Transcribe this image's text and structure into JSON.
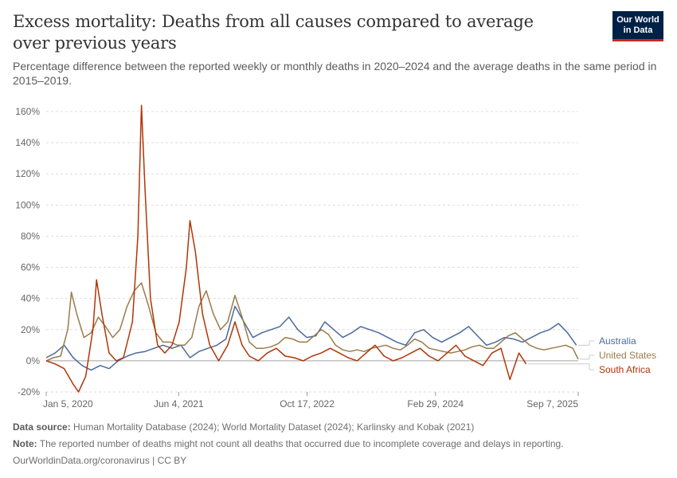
{
  "header": {
    "title": "Excess mortality: Deaths from all causes compared to average over previous years",
    "subtitle": "Percentage difference between the reported weekly or monthly deaths in 2020–2024 and the average deaths in the same period in 2015–2019.",
    "logo_line1": "Our World",
    "logo_line2": "in Data"
  },
  "footer": {
    "source_label": "Data source:",
    "source_text": "Human Mortality Database (2024); World Mortality Dataset (2024); Karlinsky and Kobak (2021)",
    "note_label": "Note:",
    "note_text": "The reported number of deaths might not count all deaths that occurred due to incomplete coverage and delays in reporting.",
    "credit": "OurWorldinData.org/coronavirus | CC BY"
  },
  "chart_data": {
    "type": "line",
    "x_axis": {
      "min": "2020-01-05",
      "max": "2025-09-07",
      "ticks": [
        "2020-01-05",
        "2021-06-04",
        "2022-10-17",
        "2024-02-29",
        "2025-09-07"
      ],
      "tick_labels": [
        "Jan 5, 2020",
        "Jun 4, 2021",
        "Oct 17, 2022",
        "Feb 29, 2024",
        "Sep 7, 2025"
      ]
    },
    "y_axis": {
      "min": -20,
      "max": 160,
      "ticks": [
        -20,
        0,
        20,
        40,
        60,
        80,
        100,
        120,
        140,
        160
      ],
      "tick_labels": [
        "-20%",
        "0%",
        "20%",
        "40%",
        "60%",
        "80%",
        "100%",
        "120%",
        "140%",
        "160%"
      ]
    },
    "grid": "horizontal dashed",
    "legend": "right end labels",
    "series": [
      {
        "name": "Australia",
        "color": "#4c6a9c",
        "points": [
          [
            "2020-01-05",
            2
          ],
          [
            "2020-02-09",
            5
          ],
          [
            "2020-03-15",
            10
          ],
          [
            "2020-04-19",
            2
          ],
          [
            "2020-05-24",
            -3
          ],
          [
            "2020-06-28",
            -6
          ],
          [
            "2020-08-02",
            -3
          ],
          [
            "2020-09-06",
            -5
          ],
          [
            "2020-10-11",
            0
          ],
          [
            "2020-11-15",
            3
          ],
          [
            "2020-12-20",
            5
          ],
          [
            "2021-01-24",
            6
          ],
          [
            "2021-02-28",
            8
          ],
          [
            "2021-04-04",
            10
          ],
          [
            "2021-05-09",
            8
          ],
          [
            "2021-06-13",
            10
          ],
          [
            "2021-07-18",
            2
          ],
          [
            "2021-08-22",
            6
          ],
          [
            "2021-09-26",
            8
          ],
          [
            "2021-10-31",
            10
          ],
          [
            "2021-12-05",
            14
          ],
          [
            "2022-01-09",
            35
          ],
          [
            "2022-02-13",
            25
          ],
          [
            "2022-03-20",
            15
          ],
          [
            "2022-04-24",
            18
          ],
          [
            "2022-05-29",
            20
          ],
          [
            "2022-07-03",
            22
          ],
          [
            "2022-08-07",
            28
          ],
          [
            "2022-09-11",
            20
          ],
          [
            "2022-10-16",
            15
          ],
          [
            "2022-11-20",
            16
          ],
          [
            "2022-12-25",
            25
          ],
          [
            "2023-01-29",
            20
          ],
          [
            "2023-03-05",
            15
          ],
          [
            "2023-04-09",
            18
          ],
          [
            "2023-05-14",
            22
          ],
          [
            "2023-06-18",
            20
          ],
          [
            "2023-07-23",
            18
          ],
          [
            "2023-08-27",
            15
          ],
          [
            "2023-10-01",
            12
          ],
          [
            "2023-11-05",
            10
          ],
          [
            "2023-12-10",
            18
          ],
          [
            "2024-01-14",
            20
          ],
          [
            "2024-02-18",
            15
          ],
          [
            "2024-03-24",
            12
          ],
          [
            "2024-04-28",
            15
          ],
          [
            "2024-06-02",
            18
          ],
          [
            "2024-07-07",
            22
          ],
          [
            "2024-08-11",
            16
          ],
          [
            "2024-09-15",
            10
          ],
          [
            "2024-10-20",
            12
          ],
          [
            "2024-11-24",
            15
          ],
          [
            "2024-12-29",
            14
          ],
          [
            "2025-02-02",
            12
          ],
          [
            "2025-03-09",
            15
          ],
          [
            "2025-04-13",
            18
          ],
          [
            "2025-05-18",
            20
          ],
          [
            "2025-06-22",
            24
          ],
          [
            "2025-07-27",
            18
          ],
          [
            "2025-08-31",
            10
          ]
        ]
      },
      {
        "name": "United States",
        "color": "#9a7b4a",
        "points": [
          [
            "2020-01-05",
            0
          ],
          [
            "2020-02-02",
            2
          ],
          [
            "2020-03-01",
            3
          ],
          [
            "2020-03-29",
            20
          ],
          [
            "2020-04-12",
            44
          ],
          [
            "2020-05-03",
            30
          ],
          [
            "2020-05-31",
            15
          ],
          [
            "2020-06-28",
            18
          ],
          [
            "2020-07-26",
            28
          ],
          [
            "2020-08-23",
            22
          ],
          [
            "2020-09-20",
            15
          ],
          [
            "2020-10-18",
            20
          ],
          [
            "2020-11-15",
            35
          ],
          [
            "2020-12-13",
            45
          ],
          [
            "2021-01-10",
            50
          ],
          [
            "2021-02-07",
            35
          ],
          [
            "2021-03-07",
            18
          ],
          [
            "2021-04-04",
            12
          ],
          [
            "2021-05-02",
            12
          ],
          [
            "2021-05-30",
            10
          ],
          [
            "2021-06-27",
            10
          ],
          [
            "2021-07-25",
            15
          ],
          [
            "2021-08-22",
            35
          ],
          [
            "2021-09-19",
            45
          ],
          [
            "2021-10-17",
            30
          ],
          [
            "2021-11-14",
            20
          ],
          [
            "2021-12-12",
            25
          ],
          [
            "2022-01-09",
            42
          ],
          [
            "2022-02-06",
            28
          ],
          [
            "2022-03-06",
            12
          ],
          [
            "2022-04-03",
            8
          ],
          [
            "2022-05-01",
            8
          ],
          [
            "2022-05-29",
            9
          ],
          [
            "2022-06-26",
            11
          ],
          [
            "2022-07-24",
            15
          ],
          [
            "2022-08-21",
            14
          ],
          [
            "2022-09-18",
            12
          ],
          [
            "2022-10-16",
            12
          ],
          [
            "2022-11-13",
            16
          ],
          [
            "2022-12-11",
            20
          ],
          [
            "2023-01-08",
            17
          ],
          [
            "2023-02-05",
            10
          ],
          [
            "2023-03-05",
            7
          ],
          [
            "2023-04-02",
            6
          ],
          [
            "2023-04-30",
            7
          ],
          [
            "2023-05-28",
            6
          ],
          [
            "2023-06-25",
            8
          ],
          [
            "2023-07-23",
            9
          ],
          [
            "2023-08-20",
            10
          ],
          [
            "2023-09-17",
            8
          ],
          [
            "2023-10-15",
            7
          ],
          [
            "2023-11-12",
            10
          ],
          [
            "2023-12-10",
            14
          ],
          [
            "2024-01-07",
            12
          ],
          [
            "2024-02-04",
            8
          ],
          [
            "2024-03-03",
            7
          ],
          [
            "2024-03-31",
            6
          ],
          [
            "2024-04-28",
            5
          ],
          [
            "2024-05-26",
            6
          ],
          [
            "2024-06-23",
            7
          ],
          [
            "2024-07-21",
            9
          ],
          [
            "2024-08-18",
            10
          ],
          [
            "2024-09-15",
            8
          ],
          [
            "2024-10-13",
            8
          ],
          [
            "2024-11-10",
            12
          ],
          [
            "2024-12-08",
            16
          ],
          [
            "2025-01-05",
            18
          ],
          [
            "2025-02-02",
            14
          ],
          [
            "2025-03-02",
            10
          ],
          [
            "2025-03-30",
            8
          ],
          [
            "2025-04-27",
            7
          ],
          [
            "2025-05-25",
            8
          ],
          [
            "2025-06-22",
            9
          ],
          [
            "2025-07-20",
            10
          ],
          [
            "2025-08-17",
            8
          ],
          [
            "2025-09-07",
            1
          ]
        ]
      },
      {
        "name": "South Africa",
        "color": "#b13507",
        "points": [
          [
            "2020-01-05",
            0
          ],
          [
            "2020-02-09",
            -2
          ],
          [
            "2020-03-15",
            -5
          ],
          [
            "2020-04-19",
            -15
          ],
          [
            "2020-05-10",
            -20
          ],
          [
            "2020-06-07",
            -10
          ],
          [
            "2020-07-05",
            20
          ],
          [
            "2020-07-19",
            52
          ],
          [
            "2020-08-09",
            30
          ],
          [
            "2020-09-06",
            5
          ],
          [
            "2020-10-04",
            0
          ],
          [
            "2020-11-01",
            2
          ],
          [
            "2020-12-06",
            25
          ],
          [
            "2020-12-27",
            80
          ],
          [
            "2021-01-10",
            164
          ],
          [
            "2021-01-24",
            110
          ],
          [
            "2021-02-14",
            40
          ],
          [
            "2021-03-14",
            10
          ],
          [
            "2021-04-11",
            5
          ],
          [
            "2021-05-09",
            10
          ],
          [
            "2021-06-06",
            25
          ],
          [
            "2021-07-04",
            60
          ],
          [
            "2021-07-18",
            90
          ],
          [
            "2021-08-08",
            70
          ],
          [
            "2021-09-05",
            30
          ],
          [
            "2021-10-03",
            10
          ],
          [
            "2021-11-07",
            0
          ],
          [
            "2021-12-12",
            10
          ],
          [
            "2022-01-09",
            25
          ],
          [
            "2022-02-06",
            10
          ],
          [
            "2022-03-06",
            3
          ],
          [
            "2022-04-10",
            0
          ],
          [
            "2022-05-15",
            5
          ],
          [
            "2022-06-19",
            8
          ],
          [
            "2022-07-24",
            3
          ],
          [
            "2022-08-28",
            2
          ],
          [
            "2022-10-02",
            0
          ],
          [
            "2022-11-06",
            3
          ],
          [
            "2022-12-11",
            5
          ],
          [
            "2023-01-15",
            8
          ],
          [
            "2023-02-19",
            5
          ],
          [
            "2023-03-26",
            2
          ],
          [
            "2023-04-30",
            0
          ],
          [
            "2023-06-04",
            5
          ],
          [
            "2023-07-09",
            10
          ],
          [
            "2023-08-13",
            3
          ],
          [
            "2023-09-17",
            0
          ],
          [
            "2023-10-22",
            2
          ],
          [
            "2023-11-26",
            5
          ],
          [
            "2023-12-31",
            8
          ],
          [
            "2024-02-04",
            3
          ],
          [
            "2024-03-10",
            0
          ],
          [
            "2024-04-14",
            5
          ],
          [
            "2024-05-19",
            10
          ],
          [
            "2024-06-23",
            3
          ],
          [
            "2024-07-28",
            0
          ],
          [
            "2024-09-01",
            -3
          ],
          [
            "2024-10-06",
            5
          ],
          [
            "2024-11-10",
            8
          ],
          [
            "2024-12-15",
            -12
          ],
          [
            "2025-01-19",
            5
          ],
          [
            "2025-02-16",
            -2
          ]
        ]
      }
    ]
  }
}
